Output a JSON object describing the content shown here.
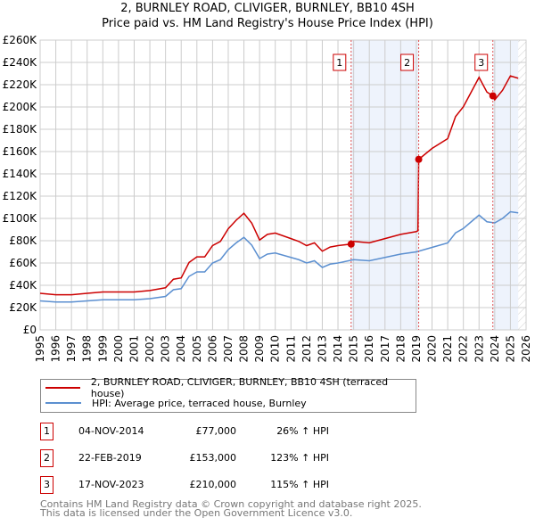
{
  "chart_data": {
    "type": "line",
    "title": "2, BURNLEY ROAD, CLIVIGER, BURNLEY, BB10 4SH",
    "subtitle": "Price paid vs. HM Land Registry's House Price Index (HPI)",
    "xlim": [
      1995,
      2026
    ],
    "ylim": [
      0,
      260000
    ],
    "yticks": [
      0,
      20000,
      40000,
      60000,
      80000,
      100000,
      120000,
      140000,
      160000,
      180000,
      200000,
      220000,
      240000,
      260000
    ],
    "ytick_labels": [
      "£0",
      "£20K",
      "£40K",
      "£60K",
      "£80K",
      "£100K",
      "£120K",
      "£140K",
      "£160K",
      "£180K",
      "£200K",
      "£220K",
      "£240K",
      "£260K"
    ],
    "xticks": [
      1995,
      1996,
      1997,
      1998,
      1999,
      2000,
      2001,
      2002,
      2003,
      2004,
      2005,
      2006,
      2007,
      2008,
      2009,
      2010,
      2011,
      2012,
      2013,
      2014,
      2015,
      2016,
      2017,
      2018,
      2019,
      2020,
      2021,
      2022,
      2023,
      2024,
      2025,
      2026
    ],
    "grid": true,
    "data_end": 2025.5,
    "series": [
      {
        "name": "2, BURNLEY ROAD, CLIVIGER, BURNLEY, BB10 4SH (terraced house)",
        "color": "#cc0000",
        "x": [
          1995,
          1996,
          1997,
          1998,
          1999,
          2000,
          2001,
          2002,
          2003,
          2003.5,
          2004,
          2004.5,
          2005,
          2005.5,
          2006,
          2006.5,
          2007,
          2007.5,
          2008,
          2008.5,
          2009,
          2009.5,
          2010,
          2011,
          2011.5,
          2012,
          2012.5,
          2013,
          2013.5,
          2014,
          2014.84,
          2015,
          2016,
          2017,
          2018,
          2019,
          2019.1,
          2019.15,
          2020,
          2021,
          2021.5,
          2022,
          2022.5,
          2023,
          2023.5,
          2023.88,
          2024,
          2024.5,
          2025,
          2025.5
        ],
        "y": [
          32800,
          31500,
          31500,
          32800,
          34000,
          34000,
          34000,
          35300,
          37800,
          45400,
          46600,
          60500,
          65500,
          65500,
          75600,
          79400,
          90700,
          98300,
          104600,
          95800,
          80600,
          85700,
          86900,
          81900,
          79400,
          75600,
          78100,
          70600,
          74300,
          75600,
          77000,
          79400,
          78100,
          81900,
          85700,
          88200,
          89000,
          153000,
          162800,
          171600,
          191400,
          200200,
          213400,
          226600,
          213400,
          210000,
          206400,
          215000,
          227900,
          225800
        ]
      },
      {
        "name": "HPI: Average price, terraced house, Burnley",
        "color": "#5b8fd0",
        "x": [
          1995,
          1996,
          1997,
          1998,
          1999,
          2000,
          2001,
          2002,
          2003,
          2003.5,
          2004,
          2004.5,
          2005,
          2005.5,
          2006,
          2006.5,
          2007,
          2007.5,
          2008,
          2008.5,
          2009,
          2009.5,
          2010,
          2011,
          2011.5,
          2012,
          2012.5,
          2013,
          2013.5,
          2014,
          2015,
          2016,
          2017,
          2018,
          2019,
          2020,
          2021,
          2021.5,
          2022,
          2022.5,
          2023,
          2023.5,
          2024,
          2024.5,
          2025,
          2025.5
        ],
        "y": [
          26000,
          25000,
          25000,
          26000,
          27000,
          27000,
          27000,
          28000,
          30000,
          36000,
          37000,
          48000,
          52000,
          52000,
          60000,
          63000,
          72000,
          78000,
          83000,
          76000,
          64000,
          68000,
          69000,
          65000,
          63000,
          60000,
          62000,
          56000,
          59000,
          60000,
          63000,
          62000,
          65000,
          68000,
          70000,
          74000,
          78000,
          87000,
          91000,
          97000,
          103000,
          97000,
          96000,
          100000,
          106000,
          105000
        ]
      }
    ],
    "sales": [
      {
        "id": "1",
        "x": 2014.84,
        "y": 77000,
        "date": "04-NOV-2014",
        "price": "£77,000",
        "hpi": "26% ↑ HPI"
      },
      {
        "id": "2",
        "x": 2019.15,
        "y": 153000,
        "date": "22-FEB-2019",
        "price": "£153,000",
        "hpi": "123% ↑ HPI"
      },
      {
        "id": "3",
        "x": 2023.88,
        "y": 210000,
        "date": "17-NOV-2023",
        "price": "£210,000",
        "hpi": "115% ↑ HPI"
      }
    ]
  },
  "footer": {
    "line1": "Contains HM Land Registry data © Crown copyright and database right 2025.",
    "line2": "This data is licensed under the Open Government Licence v3.0."
  }
}
